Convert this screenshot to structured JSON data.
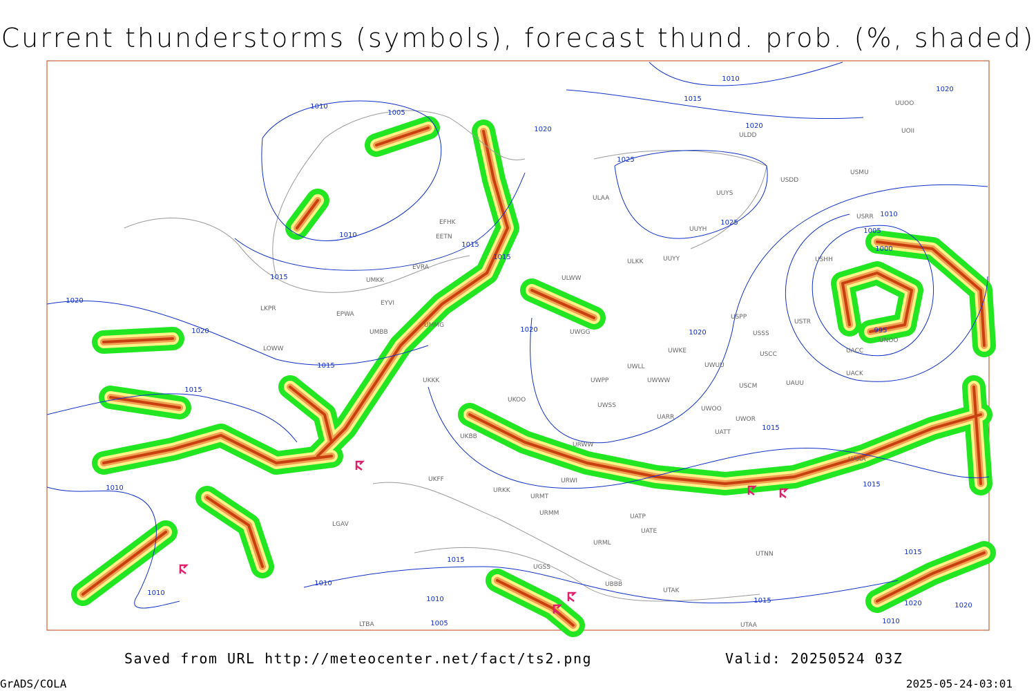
{
  "header": {
    "title": "Current thunderstorms (symbols), forecast thund. prob. (%, shaded)"
  },
  "footer": {
    "saved_from": "Saved from URL http://meteocenter.net/fact/ts2.png",
    "valid": "Valid: 20250524 03Z",
    "credit": "GrADS/COLA",
    "timestamp": "2025-05-24-03:01"
  },
  "isobar_labels": [
    "1010",
    "1015",
    "1020",
    "1020",
    "1010",
    "1005",
    "1020",
    "1025",
    "1025",
    "1010",
    "1015",
    "1015",
    "1015",
    "1020",
    "1020",
    "1020",
    "1020",
    "1015",
    "1015",
    "1010",
    "1005",
    "1000",
    "995",
    "1015",
    "1015",
    "1010",
    "1015",
    "1010",
    "1010",
    "1010",
    "1005",
    "1015",
    "1015",
    "1020",
    "1020",
    "1010"
  ],
  "stations": [
    "EFHK",
    "EETN",
    "EVRA",
    "UMKK",
    "EYVI",
    "UMMG",
    "EPWA",
    "LKPR",
    "LOWW",
    "UMBB",
    "ULAA",
    "UUYS",
    "UUYH",
    "UUYY",
    "ULKK",
    "ULWW",
    "UWGG",
    "UWKE",
    "UWUU",
    "UWLL",
    "UWWW",
    "UWPP",
    "UWSS",
    "UWOO",
    "UWOR",
    "USCM",
    "UATT",
    "UARR",
    "URWW",
    "URWI",
    "URMT",
    "URMM",
    "URKK",
    "UKOO",
    "UKFF",
    "UKKK",
    "UKBB",
    "USSS",
    "USCC",
    "USTR",
    "USPP",
    "UAUU",
    "UACK",
    "UACC",
    "UAAA",
    "UATE",
    "UATP",
    "UTNN",
    "UTAK",
    "UTAA",
    "UUOO",
    "UOII",
    "ULDD",
    "USMU",
    "USDD",
    "USHH",
    "USRR",
    "UNOO",
    "UGSS",
    "UBBB",
    "URML",
    "LGAV",
    "LTBA"
  ]
}
